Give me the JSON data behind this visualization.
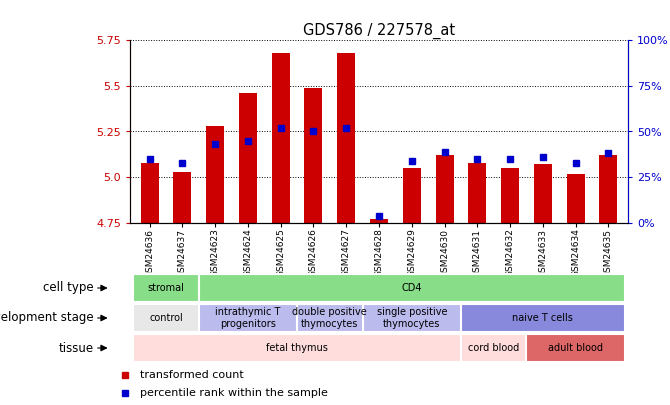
{
  "title": "GDS786 / 227578_at",
  "samples": [
    "GSM24636",
    "GSM24637",
    "GSM24623",
    "GSM24624",
    "GSM24625",
    "GSM24626",
    "GSM24627",
    "GSM24628",
    "GSM24629",
    "GSM24630",
    "GSM24631",
    "GSM24632",
    "GSM24633",
    "GSM24634",
    "GSM24635"
  ],
  "bar_values": [
    5.08,
    5.03,
    5.28,
    5.46,
    5.68,
    5.49,
    5.68,
    4.77,
    5.05,
    5.12,
    5.08,
    5.05,
    5.07,
    5.02,
    5.12
  ],
  "percentile_values": [
    5.1,
    5.08,
    5.18,
    5.2,
    5.27,
    5.25,
    5.27,
    4.79,
    5.09,
    5.14,
    5.1,
    5.1,
    5.11,
    5.08,
    5.13
  ],
  "ylim_left": [
    4.75,
    5.75
  ],
  "yticks_left": [
    4.75,
    5.0,
    5.25,
    5.5,
    5.75
  ],
  "yticks_right_vals": [
    0,
    25,
    50,
    75,
    100
  ],
  "yticks_right_pos": [
    4.75,
    5.0,
    5.25,
    5.5,
    5.75
  ],
  "bar_color": "#cc0000",
  "percentile_color": "#0000cc",
  "bar_bottom": 4.75,
  "cell_type_label": "cell type",
  "dev_stage_label": "development stage",
  "tissue_label": "tissue",
  "cell_type_groups": [
    {
      "label": "stromal",
      "start": 0,
      "end": 2,
      "color": "#88dd88"
    },
    {
      "label": "CD4",
      "start": 2,
      "end": 15,
      "color": "#88dd88"
    }
  ],
  "dev_stage_groups": [
    {
      "label": "control",
      "start": 0,
      "end": 2,
      "color": "#e8e8e8"
    },
    {
      "label": "intrathymic T\nprogenitors",
      "start": 2,
      "end": 5,
      "color": "#bbbbee"
    },
    {
      "label": "double positive\nthymocytes",
      "start": 5,
      "end": 7,
      "color": "#bbbbee"
    },
    {
      "label": "single positive\nthymocytes",
      "start": 7,
      "end": 10,
      "color": "#bbbbee"
    },
    {
      "label": "naive T cells",
      "start": 10,
      "end": 15,
      "color": "#8888dd"
    }
  ],
  "tissue_groups": [
    {
      "label": "fetal thymus",
      "start": 0,
      "end": 10,
      "color": "#ffdddd"
    },
    {
      "label": "cord blood",
      "start": 10,
      "end": 12,
      "color": "#ffdddd"
    },
    {
      "label": "adult blood",
      "start": 12,
      "end": 15,
      "color": "#dd6666"
    }
  ],
  "legend_items": [
    {
      "label": "transformed count",
      "color": "#cc0000"
    },
    {
      "label": "percentile rank within the sample",
      "color": "#0000cc"
    }
  ],
  "axis_label_color": "#cc0000",
  "right_axis_color": "#0000cc"
}
